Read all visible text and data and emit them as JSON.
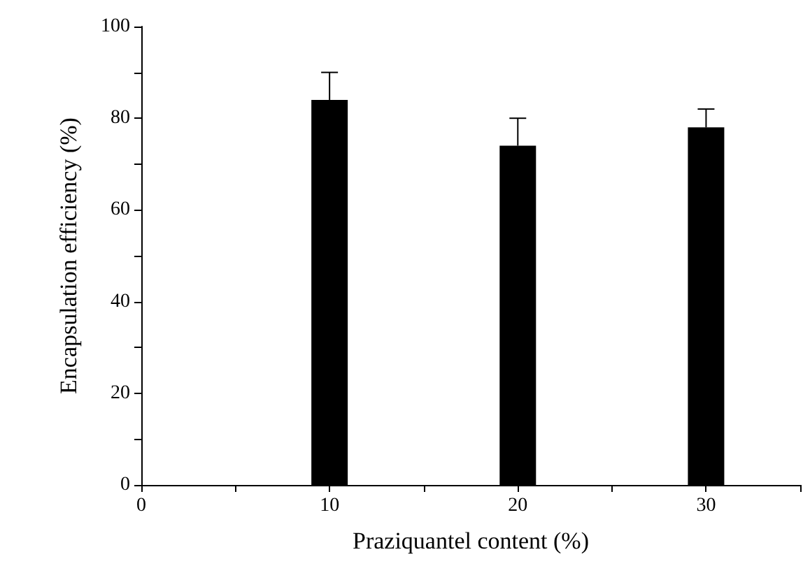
{
  "chart_data": {
    "type": "bar",
    "xlabel": "Praziquantel content (%)",
    "ylabel": "Encapsulation efficiency (%)",
    "x": [
      10,
      20,
      30
    ],
    "values": [
      84,
      74,
      78
    ],
    "color": "#000000",
    "errors": [
      [
        84,
        90
      ],
      [
        74,
        80
      ],
      [
        78,
        82
      ]
    ],
    "xlim": [
      0,
      35
    ],
    "xticks": [
      0,
      {
        "value": 5,
        "label": null
      },
      10,
      {
        "value": 15,
        "label": null
      },
      20,
      {
        "value": 25,
        "label": null
      },
      30,
      {
        "value": 35,
        "label": null
      }
    ],
    "ylim": [
      0,
      100
    ],
    "yticks": [
      0,
      {
        "value": 10,
        "label": null
      },
      20,
      {
        "value": 30,
        "label": null
      },
      40,
      {
        "value": 50,
        "label": null
      },
      60,
      {
        "value": 70,
        "label": null
      },
      80,
      {
        "value": 90,
        "label": null
      },
      100
    ],
    "grid": false
  }
}
